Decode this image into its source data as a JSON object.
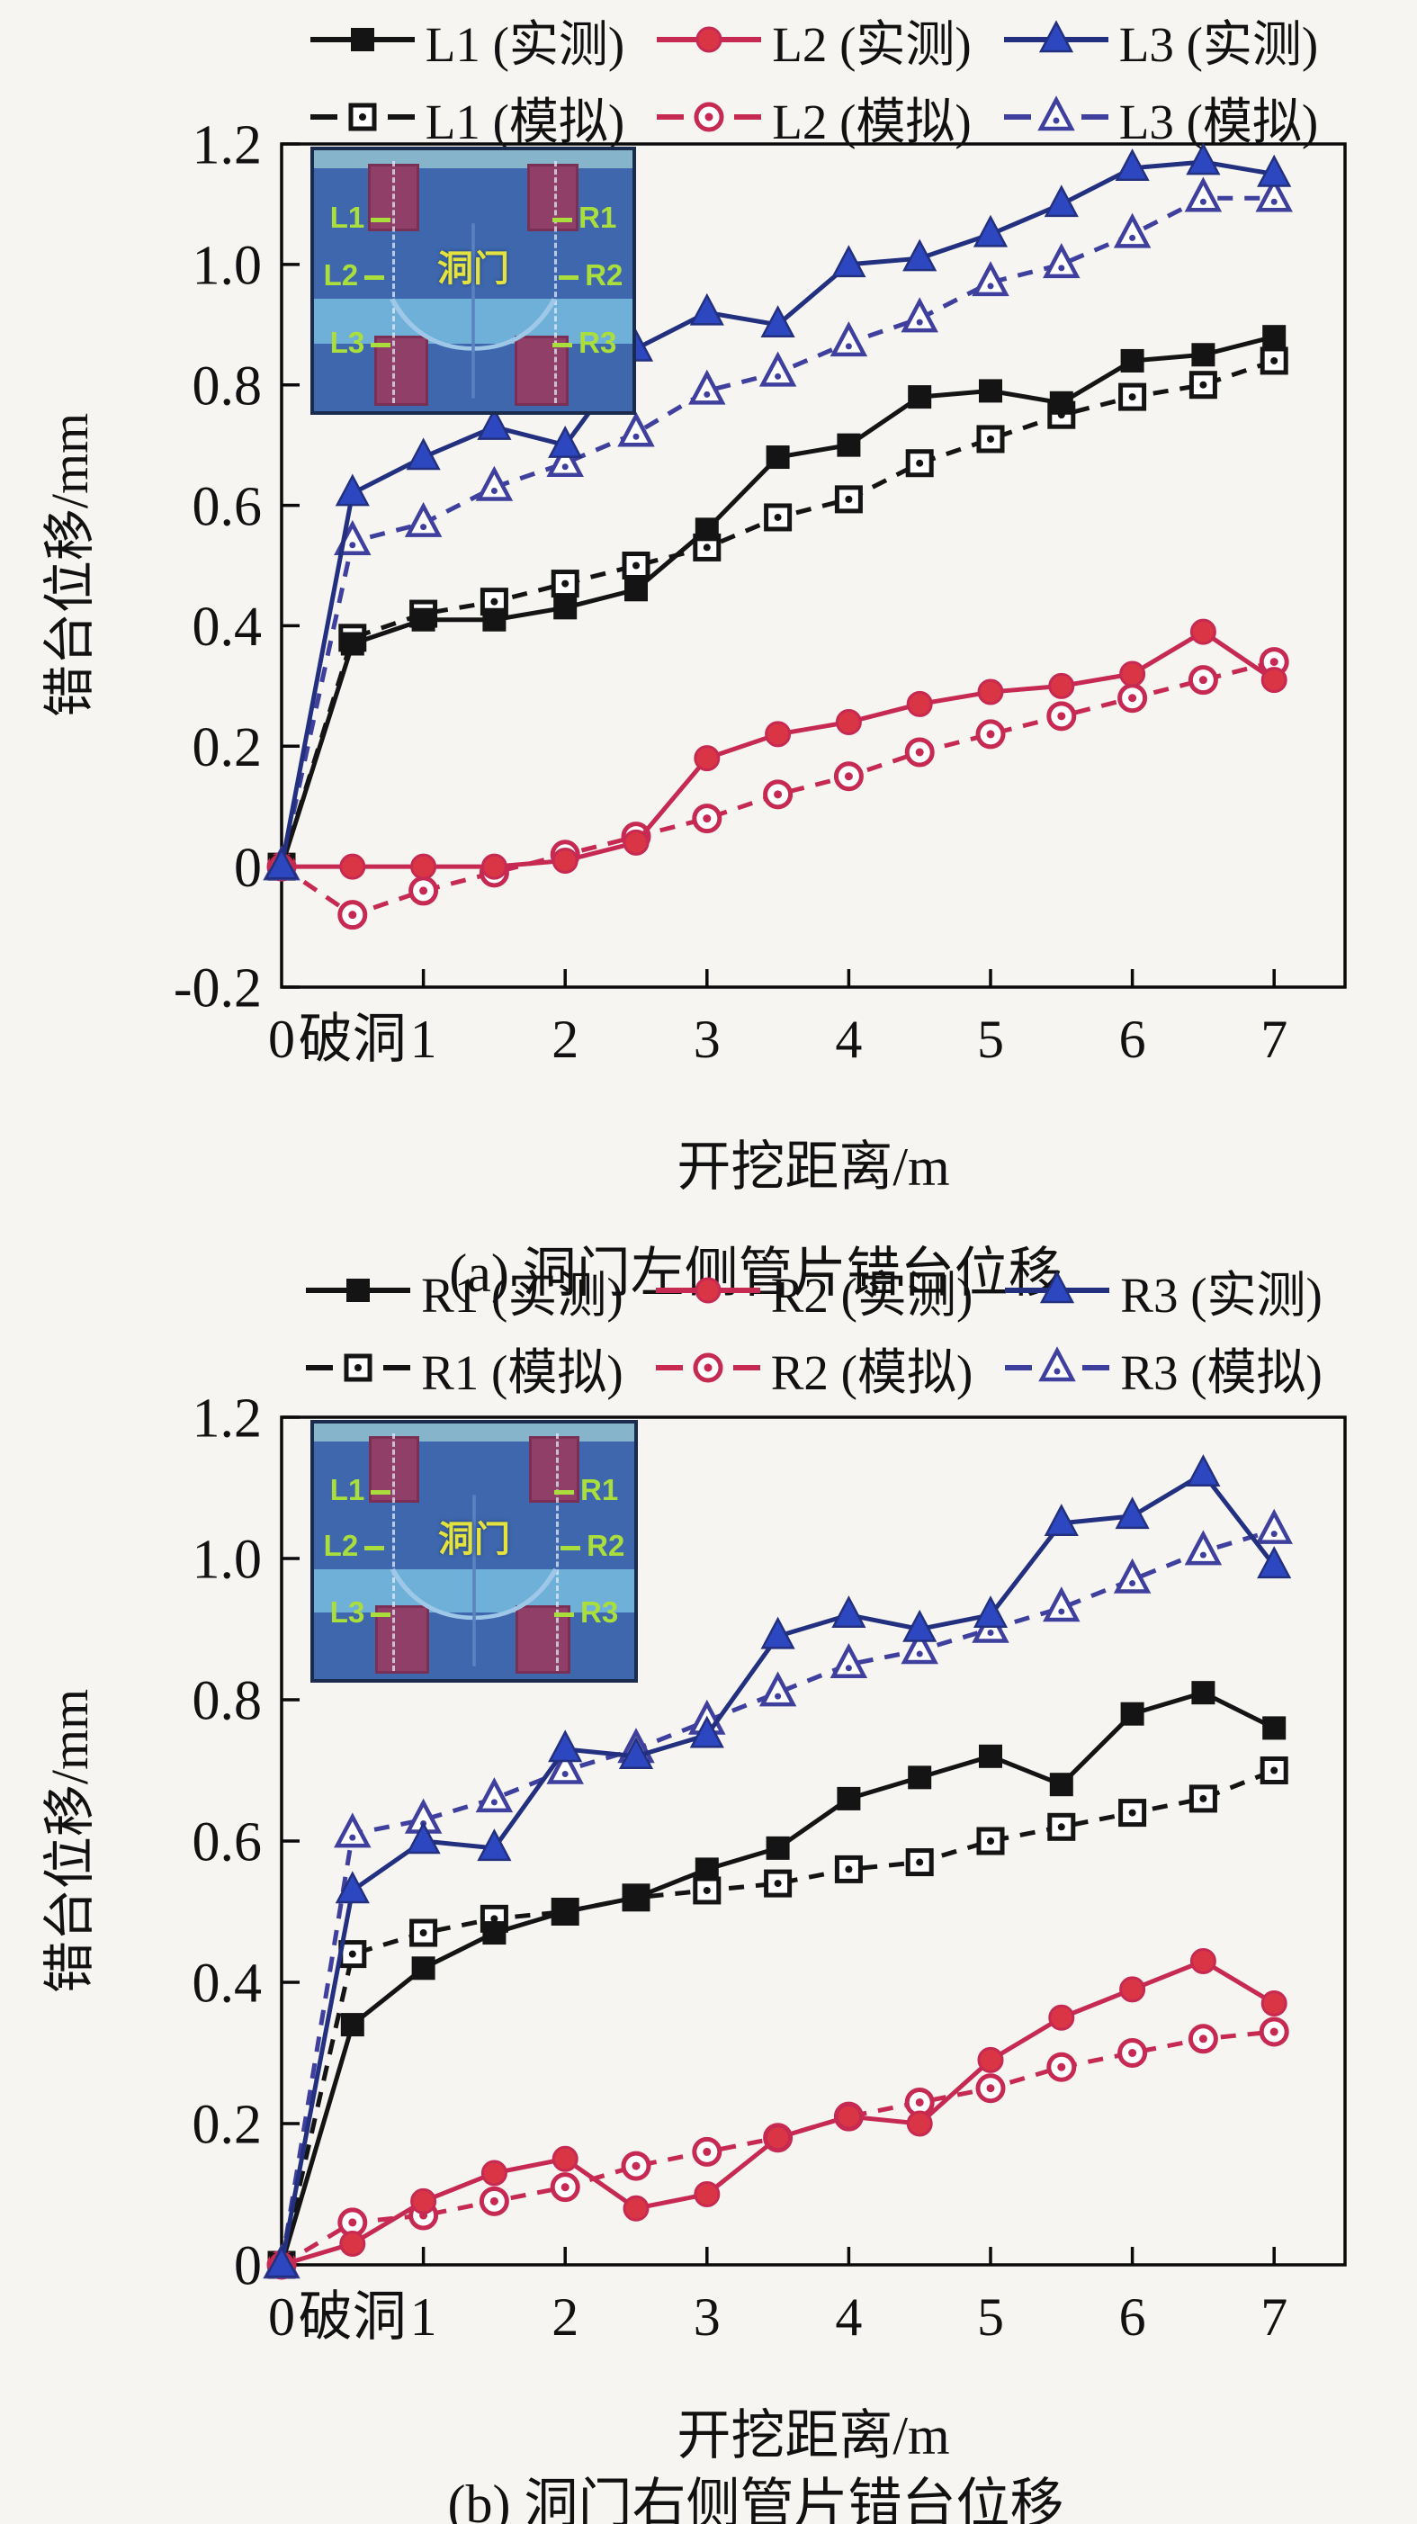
{
  "page": {
    "background": "#f6f5f2"
  },
  "inset": {
    "left_labels": [
      "L1",
      "L2",
      "L3"
    ],
    "right_labels": [
      "R1",
      "R2",
      "R3"
    ],
    "center_label": "洞门"
  },
  "chart_data": [
    {
      "type": "line",
      "caption": "(a) 洞门左侧管片错台位移",
      "xlabel": "开挖距离/m",
      "ylabel": "错台位移/mm",
      "xlim": [
        0,
        7.5
      ],
      "ylim": [
        -0.2,
        1.2
      ],
      "grid": false,
      "legend_position": "top",
      "x": [
        0,
        0.5,
        1,
        1.5,
        2,
        2.5,
        3,
        3.5,
        4,
        4.5,
        5,
        5.5,
        6,
        6.5,
        7
      ],
      "x_tick_marks": [
        1,
        2,
        3,
        4,
        5,
        6,
        7
      ],
      "x_tick_labels": [
        {
          "label": "0",
          "x": 0
        },
        {
          "label": "破洞",
          "x": 0.5
        },
        {
          "label": "1",
          "x": 1
        },
        {
          "label": "2",
          "x": 2
        },
        {
          "label": "3",
          "x": 3
        },
        {
          "label": "4",
          "x": 4
        },
        {
          "label": "5",
          "x": 5
        },
        {
          "label": "6",
          "x": 6
        },
        {
          "label": "7",
          "x": 7
        }
      ],
      "y_ticks": [
        {
          "label": "-0.2",
          "v": -0.2
        },
        {
          "label": "0",
          "v": 0
        },
        {
          "label": "0.2",
          "v": 0.2
        },
        {
          "label": "0.4",
          "v": 0.4
        },
        {
          "label": "0.6",
          "v": 0.6
        },
        {
          "label": "0.8",
          "v": 0.8
        },
        {
          "label": "1.0",
          "v": 1.0
        },
        {
          "label": "1.2",
          "v": 1.2
        }
      ],
      "series": [
        {
          "name": "L1-measured",
          "label": "L1 (实测)",
          "marker": "square",
          "line": "solid",
          "fill": "solid",
          "color": "#141414",
          "marker_color": "#141414",
          "values": [
            0,
            0.37,
            0.41,
            0.41,
            0.43,
            0.46,
            0.56,
            0.68,
            0.7,
            0.78,
            0.79,
            0.77,
            0.84,
            0.85,
            0.88
          ]
        },
        {
          "name": "L2-measured",
          "label": "L2 (实测)",
          "marker": "circle",
          "line": "solid",
          "fill": "solid",
          "color": "#c62a52",
          "marker_color": "#da3545",
          "values": [
            0,
            0.0,
            0.0,
            0.0,
            0.01,
            0.04,
            0.18,
            0.22,
            0.24,
            0.27,
            0.29,
            0.3,
            0.32,
            0.39,
            0.31
          ]
        },
        {
          "name": "L3-measured",
          "label": "L3 (实测)",
          "marker": "triangle",
          "line": "solid",
          "fill": "solid",
          "color": "#22307f",
          "marker_color": "#2d47c1",
          "values": [
            0,
            0.62,
            0.68,
            0.73,
            0.7,
            0.86,
            0.92,
            0.9,
            1.0,
            1.01,
            1.05,
            1.1,
            1.16,
            1.17,
            1.15
          ]
        },
        {
          "name": "L1-simulated",
          "label": "L1 (模拟)",
          "marker": "square",
          "line": "dashed",
          "fill": "open",
          "color": "#141414",
          "marker_color": "#141414",
          "values": [
            0,
            0.38,
            0.42,
            0.44,
            0.47,
            0.5,
            0.53,
            0.58,
            0.61,
            0.67,
            0.71,
            0.75,
            0.78,
            0.8,
            0.84
          ]
        },
        {
          "name": "L2-simulated",
          "label": "L2 (模拟)",
          "marker": "circle",
          "line": "dashed",
          "fill": "open",
          "color": "#c62a52",
          "marker_color": "#c62a52",
          "values": [
            0,
            -0.08,
            -0.04,
            -0.01,
            0.02,
            0.05,
            0.08,
            0.12,
            0.15,
            0.19,
            0.22,
            0.25,
            0.28,
            0.31,
            0.34
          ]
        },
        {
          "name": "L3-simulated",
          "label": "L3 (模拟)",
          "marker": "triangle",
          "line": "dashed",
          "fill": "open",
          "color": "#3f3f9e",
          "marker_color": "#3f3f9e",
          "values": [
            0,
            0.54,
            0.57,
            0.63,
            0.67,
            0.72,
            0.79,
            0.82,
            0.87,
            0.91,
            0.97,
            1.0,
            1.05,
            1.11,
            1.11
          ]
        }
      ]
    },
    {
      "type": "line",
      "caption": "(b) 洞门右侧管片错台位移",
      "xlabel": "开挖距离/m",
      "ylabel": "错台位移/mm",
      "xlim": [
        0,
        7.5
      ],
      "ylim": [
        0,
        1.2
      ],
      "grid": false,
      "legend_position": "top",
      "x": [
        0,
        0.5,
        1,
        1.5,
        2,
        2.5,
        3,
        3.5,
        4,
        4.5,
        5,
        5.5,
        6,
        6.5,
        7
      ],
      "x_tick_marks": [
        1,
        2,
        3,
        4,
        5,
        6,
        7
      ],
      "x_tick_labels": [
        {
          "label": "0",
          "x": 0
        },
        {
          "label": "破洞",
          "x": 0.5
        },
        {
          "label": "1",
          "x": 1
        },
        {
          "label": "2",
          "x": 2
        },
        {
          "label": "3",
          "x": 3
        },
        {
          "label": "4",
          "x": 4
        },
        {
          "label": "5",
          "x": 5
        },
        {
          "label": "6",
          "x": 6
        },
        {
          "label": "7",
          "x": 7
        }
      ],
      "y_ticks": [
        {
          "label": "0",
          "v": 0
        },
        {
          "label": "0.2",
          "v": 0.2
        },
        {
          "label": "0.4",
          "v": 0.4
        },
        {
          "label": "0.6",
          "v": 0.6
        },
        {
          "label": "0.8",
          "v": 0.8
        },
        {
          "label": "1.0",
          "v": 1.0
        },
        {
          "label": "1.2",
          "v": 1.2
        }
      ],
      "series": [
        {
          "name": "R1-measured",
          "label": "R1 (实测)",
          "marker": "square",
          "line": "solid",
          "fill": "solid",
          "color": "#141414",
          "marker_color": "#141414",
          "values": [
            0,
            0.34,
            0.42,
            0.47,
            0.5,
            0.52,
            0.56,
            0.59,
            0.66,
            0.69,
            0.72,
            0.68,
            0.78,
            0.81,
            0.76
          ]
        },
        {
          "name": "R2-measured",
          "label": "R2 (实测)",
          "marker": "circle",
          "line": "solid",
          "fill": "solid",
          "color": "#c62a52",
          "marker_color": "#da3545",
          "values": [
            0,
            0.03,
            0.09,
            0.13,
            0.15,
            0.08,
            0.1,
            0.18,
            0.21,
            0.2,
            0.29,
            0.35,
            0.39,
            0.43,
            0.37
          ]
        },
        {
          "name": "R3-measured",
          "label": "R3 (实测)",
          "marker": "triangle",
          "line": "solid",
          "fill": "solid",
          "color": "#22307f",
          "marker_color": "#2d47c1",
          "values": [
            0,
            0.53,
            0.6,
            0.59,
            0.73,
            0.72,
            0.75,
            0.89,
            0.92,
            0.9,
            0.92,
            1.05,
            1.06,
            1.12,
            0.99
          ]
        },
        {
          "name": "R1-simulated",
          "label": "R1 (模拟)",
          "marker": "square",
          "line": "dashed",
          "fill": "open",
          "color": "#141414",
          "marker_color": "#141414",
          "values": [
            0,
            0.44,
            0.47,
            0.49,
            0.5,
            0.52,
            0.53,
            0.54,
            0.56,
            0.57,
            0.6,
            0.62,
            0.64,
            0.66,
            0.7
          ]
        },
        {
          "name": "R2-simulated",
          "label": "R2 (模拟)",
          "marker": "circle",
          "line": "dashed",
          "fill": "open",
          "color": "#c62a52",
          "marker_color": "#c62a52",
          "values": [
            0,
            0.06,
            0.07,
            0.09,
            0.11,
            0.14,
            0.16,
            0.18,
            0.21,
            0.23,
            0.25,
            0.28,
            0.3,
            0.32,
            0.33
          ]
        },
        {
          "name": "R3-simulated",
          "label": "R3 (模拟)",
          "marker": "triangle",
          "line": "dashed",
          "fill": "open",
          "color": "#3f3f9e",
          "marker_color": "#3f3f9e",
          "values": [
            0,
            0.61,
            0.63,
            0.66,
            0.7,
            0.73,
            0.77,
            0.81,
            0.85,
            0.87,
            0.9,
            0.93,
            0.97,
            1.01,
            1.04
          ]
        }
      ]
    }
  ]
}
